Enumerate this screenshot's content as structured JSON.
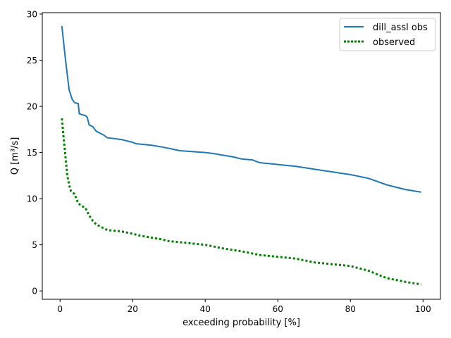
{
  "chart_data": {
    "type": "line",
    "title": "",
    "xlabel": "exceeding probability [%]",
    "ylabel": "Q [m³/s]",
    "xlim": [
      -4.9,
      104.8
    ],
    "ylim": [
      -0.9,
      30.15
    ],
    "xticks": [
      0,
      20,
      40,
      60,
      80,
      100
    ],
    "yticks": [
      0,
      5,
      10,
      15,
      20,
      25,
      30
    ],
    "grid": false,
    "legend": "top-right",
    "series": [
      {
        "name": "dill_assl obs",
        "color": "#1f77b4",
        "style": "solid",
        "x": [
          0.5,
          1.5,
          2.5,
          3.3,
          4,
          5,
          5.3,
          6,
          7,
          7.5,
          8,
          9,
          10,
          11,
          12,
          13,
          15,
          17,
          19,
          20,
          21,
          25,
          28,
          30,
          33,
          40,
          42,
          45,
          48,
          50,
          53,
          55,
          60,
          65,
          70,
          75,
          80,
          85,
          90,
          95,
          99.5
        ],
        "y": [
          28.7,
          25,
          21.8,
          20.8,
          20.4,
          20.3,
          19.2,
          19.1,
          19,
          18.8,
          18,
          17.8,
          17.3,
          17.1,
          16.9,
          16.6,
          16.5,
          16.4,
          16.2,
          16.1,
          15.95,
          15.8,
          15.6,
          15.45,
          15.2,
          15.0,
          14.9,
          14.7,
          14.5,
          14.3,
          14.2,
          13.9,
          13.7,
          13.5,
          13.2,
          12.9,
          12.6,
          12.2,
          11.5,
          11.0,
          10.7
        ]
      },
      {
        "name": "observed",
        "color": "#008000",
        "style": "dotted",
        "x": [
          0.5,
          1,
          1.5,
          2,
          2.5,
          3,
          4,
          5,
          6,
          7,
          8,
          9,
          10,
          12,
          13,
          17,
          20,
          22,
          25,
          28,
          30,
          35,
          40,
          45,
          50,
          55,
          60,
          65,
          70,
          75,
          80,
          85,
          88,
          90,
          95,
          99.5
        ],
        "y": [
          18.7,
          16.5,
          14.5,
          12.5,
          11.5,
          10.8,
          10.5,
          9.5,
          9.2,
          9.0,
          8.2,
          7.6,
          7.2,
          6.8,
          6.6,
          6.45,
          6.2,
          6.0,
          5.8,
          5.6,
          5.4,
          5.2,
          5.0,
          4.6,
          4.3,
          3.9,
          3.7,
          3.5,
          3.1,
          2.9,
          2.7,
          2.2,
          1.7,
          1.4,
          1.0,
          0.7
        ]
      }
    ]
  }
}
